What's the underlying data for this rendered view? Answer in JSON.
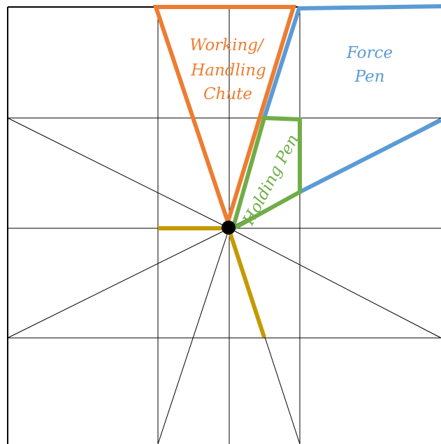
{
  "labels": {
    "chute_line1": "Working/",
    "chute_line2": "Handling",
    "chute_line3": "Chute",
    "force_line1": "Force",
    "force_line2": "Pen",
    "holding": "Holding Pen"
  },
  "colors": {
    "grid": "#000000",
    "chute": "#ED7D31",
    "force_pen": "#5B9BD5",
    "holding_pen": "#70AD47",
    "gates": "#C49A00",
    "hub": "#000000"
  }
}
